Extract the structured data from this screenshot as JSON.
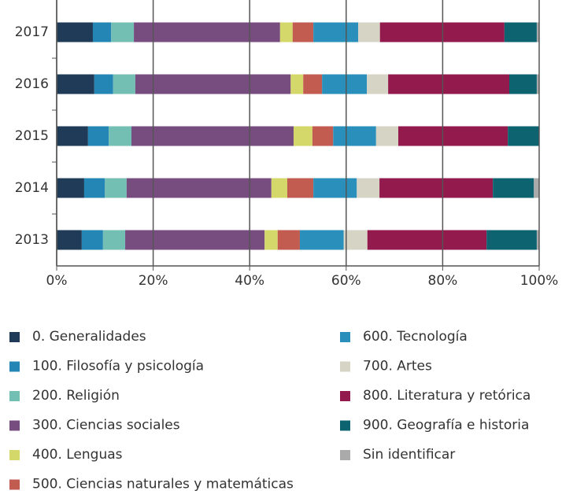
{
  "chart_data": {
    "type": "stacked_bar_horizontal",
    "categories": [
      "2017",
      "2016",
      "2015",
      "2014",
      "2013"
    ],
    "series": [
      {
        "name": "0. Generalidades",
        "color": "#1f3b57",
        "values": [
          7.5,
          7.8,
          6.5,
          5.7,
          5.2
        ]
      },
      {
        "name": "100. Filosofía y psicología",
        "color": "#2386b5",
        "values": [
          3.8,
          3.9,
          4.3,
          4.3,
          4.4
        ]
      },
      {
        "name": "200. Religión",
        "color": "#74bfb3",
        "values": [
          4.7,
          4.6,
          4.7,
          4.5,
          4.6
        ]
      },
      {
        "name": "300. Ciencias sociales",
        "color": "#774d80",
        "values": [
          30.3,
          32.2,
          33.6,
          30.0,
          28.9
        ]
      },
      {
        "name": "400. Lenguas",
        "color": "#d4d86a",
        "values": [
          2.6,
          2.6,
          3.9,
          3.3,
          2.7
        ]
      },
      {
        "name": "500. Ciencias naturales y matemáticas",
        "color": "#c25b50",
        "values": [
          4.3,
          3.9,
          4.3,
          5.4,
          4.6
        ]
      },
      {
        "name": "600. Tecnología",
        "color": "#2a8fba",
        "values": [
          9.3,
          9.3,
          8.9,
          9.0,
          9.1
        ]
      },
      {
        "name": "700. Artes",
        "color": "#d6d5c5",
        "values": [
          4.5,
          4.4,
          4.6,
          4.7,
          4.9
        ]
      },
      {
        "name": "800. Literatura y retórica",
        "color": "#921a4c",
        "values": [
          25.8,
          25.1,
          22.7,
          23.5,
          24.7
        ]
      },
      {
        "name": "900. Geografía e historia",
        "color": "#0d6370",
        "values": [
          6.7,
          5.7,
          6.5,
          8.5,
          10.4
        ]
      },
      {
        "name": "Sin identificar",
        "color": "#a9aaa9",
        "values": [
          0.5,
          0.5,
          0,
          1.1,
          0.5
        ]
      }
    ],
    "xlim": [
      0,
      100
    ],
    "xticks": [
      {
        "value": 0,
        "label": "0%"
      },
      {
        "value": 20,
        "label": "20%"
      },
      {
        "value": 40,
        "label": "40%"
      },
      {
        "value": 60,
        "label": "60%"
      },
      {
        "value": 80,
        "label": "80%"
      },
      {
        "value": 100,
        "label": "100%"
      }
    ],
    "grid": true
  }
}
